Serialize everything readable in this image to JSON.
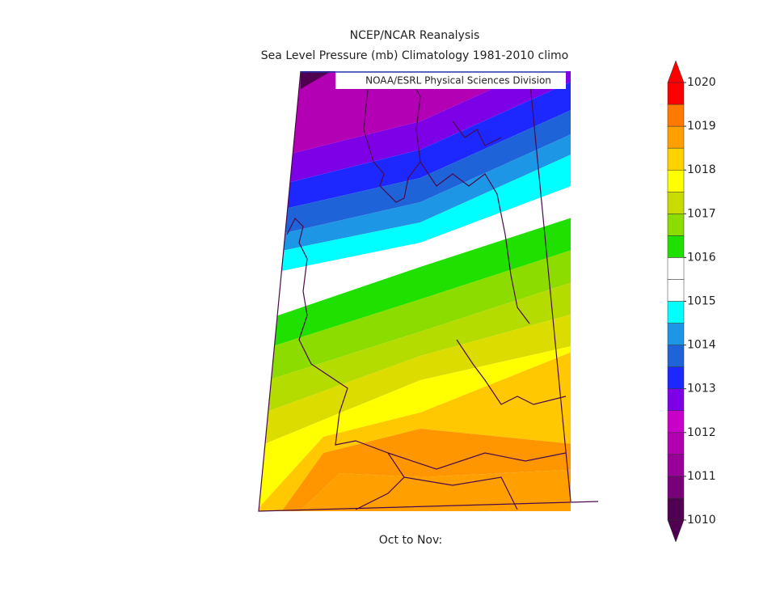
{
  "title": "NCEP/NCAR Reanalysis",
  "subtitle": "Sea Level Pressure (mb) Climatology 1981-2010 climo",
  "credit": "NOAA/ESRL Physical Sciences Division",
  "caption": "Oct to Nov:",
  "colorbar": {
    "lim": [
      1010,
      1020
    ],
    "ticks": [
      1010,
      1011,
      1012,
      1013,
      1014,
      1015,
      1016,
      1017,
      1018,
      1019,
      1020
    ],
    "colors": [
      "#500050",
      "#780078",
      "#990099",
      "#b000b0",
      "#c800c8",
      "#7d00e6",
      "#1c28ff",
      "#1e64d8",
      "#1e96e6",
      "#00ffff",
      "#ffffff",
      "#ffffff",
      "#20e000",
      "#8cdc00",
      "#c8dc00",
      "#ffff00",
      "#ffd200",
      "#ffa000",
      "#ff7800",
      "#ff0000"
    ]
  }
}
